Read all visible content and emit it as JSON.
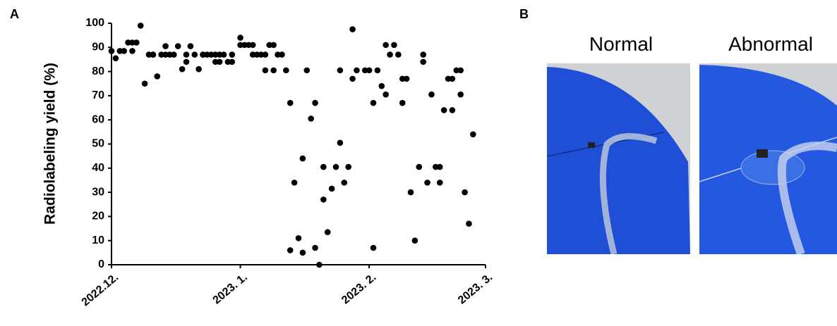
{
  "panels": {
    "a": "A",
    "b": "B",
    "images": [
      "Normal",
      "Abnormal"
    ]
  },
  "chart_data": {
    "type": "scatter",
    "ylabel": "Radiolabeling yield (%)",
    "color": "#000000",
    "x": [
      0,
      1,
      2,
      3,
      4,
      5,
      5,
      6,
      7,
      8,
      9,
      10,
      10,
      11,
      12,
      13,
      13,
      14,
      15,
      16,
      17,
      18,
      18,
      19,
      20,
      21,
      22,
      22,
      23,
      24,
      25,
      25,
      26,
      26,
      27,
      28,
      29,
      29,
      31,
      31,
      32,
      33,
      34,
      34,
      35,
      36,
      37,
      37,
      38,
      39,
      39,
      40,
      41,
      42,
      43,
      43,
      44,
      45,
      46,
      46,
      47,
      48,
      49,
      49,
      50,
      51,
      51,
      52,
      53,
      54,
      55,
      55,
      56,
      57,
      58,
      58,
      59,
      61,
      62,
      63,
      63,
      64,
      65,
      66,
      66,
      67,
      68,
      69,
      70,
      70,
      71,
      72,
      73,
      74,
      75,
      75,
      76,
      77,
      78,
      79,
      79,
      80,
      81,
      82,
      82,
      83,
      84,
      84,
      85,
      86,
      87
    ],
    "values": [
      88.5,
      85.5,
      88.5,
      88.5,
      92,
      88.5,
      92,
      92,
      99,
      75,
      87,
      87,
      87,
      78,
      87,
      90.5,
      87,
      87,
      87,
      90.5,
      81,
      87,
      84,
      90.5,
      87,
      81,
      87,
      87,
      87,
      87,
      87,
      84,
      87,
      84,
      87,
      84,
      87,
      84,
      94,
      91,
      91,
      91,
      87,
      91,
      87,
      87,
      87,
      80.5,
      91,
      80.5,
      91,
      87,
      87,
      80.5,
      67,
      6,
      34,
      11,
      44,
      5,
      80.5,
      60.5,
      7,
      67,
      0,
      27,
      40.5,
      13.5,
      31.5,
      40.5,
      50.5,
      80.5,
      34,
      40.5,
      77,
      97.5,
      80.5,
      80.5,
      80.5,
      7,
      67,
      80.5,
      74,
      70.5,
      91,
      87,
      91,
      87,
      77,
      67,
      77,
      30,
      10,
      40.5,
      84,
      87,
      34,
      70.5,
      40.5,
      40.5,
      34,
      64,
      77,
      77,
      64,
      80.5,
      80.5,
      70.5,
      30,
      17,
      54
    ],
    "xlim": [
      0,
      90
    ],
    "xticks": [
      {
        "value": 0,
        "label": "2022.12."
      },
      {
        "value": 31,
        "label": "2023. 1."
      },
      {
        "value": 62,
        "label": "2023. 2."
      },
      {
        "value": 90,
        "label": "2023. 3."
      }
    ],
    "ylim": [
      0,
      100
    ],
    "yticks": [
      0,
      10,
      20,
      30,
      40,
      50,
      60,
      70,
      80,
      90,
      100
    ]
  }
}
